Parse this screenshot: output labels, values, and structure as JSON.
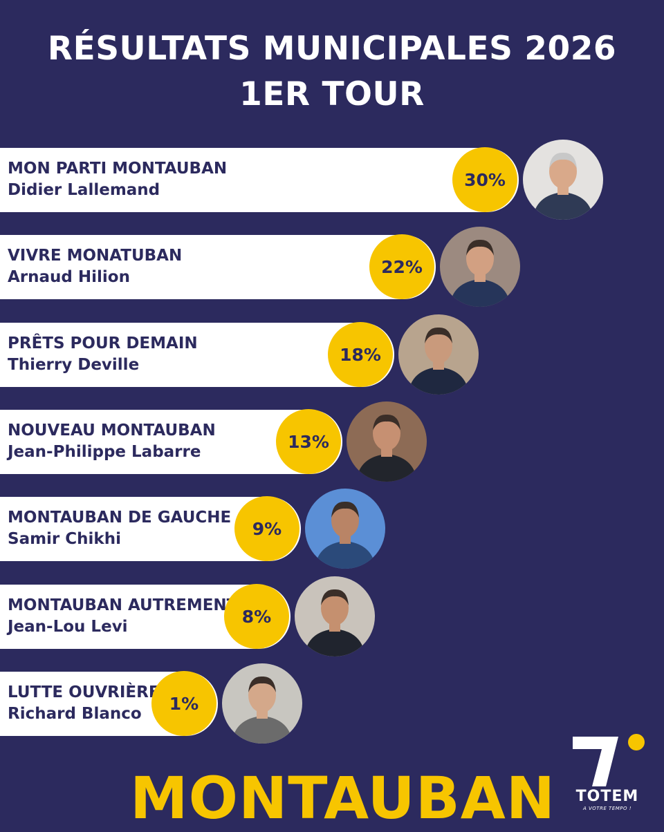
{
  "header": {
    "title_line1": "RÉSULTATS MUNICIPALES 2026",
    "title_line2": "1ER TOUR"
  },
  "chart_data": {
    "type": "bar",
    "title": "RÉSULTATS MUNICIPALES 2026 1ER TOUR",
    "categories": [
      "MON PARTI MONTAUBAN",
      "VIVRE MONATUBAN",
      "PRÊTS POUR DEMAIN",
      "NOUVEAU MONTAUBAN",
      "MONTAUBAN DE GAUCHE",
      "MONTAUBAN AUTREMENT",
      "LUTTE OUVRIÈRE"
    ],
    "candidates": [
      "Didier Lallemand",
      "Arnaud Hilion",
      "Thierry Deville",
      "Jean-Philippe Labarre",
      "Samir Chikhi",
      "Jean-Lou Levi",
      "Richard Blanco"
    ],
    "values": [
      30,
      22,
      18,
      13,
      9,
      8,
      1
    ],
    "labels": [
      "30%",
      "22%",
      "18%",
      "13%",
      "9%",
      "8%",
      "1%"
    ],
    "unit": "%",
    "orientation": "horizontal"
  },
  "footer": {
    "city": "MONTAUBAN",
    "logo_name": "TOTEM",
    "logo_tagline": "A VOTRE TEMPO !"
  },
  "colors": {
    "background": "#2c2a5e",
    "bar": "#ffffff",
    "accent": "#f7c500",
    "text_dark": "#2c2a5e"
  },
  "icons": {
    "photos": [
      "candidate-photo-icon"
    ],
    "logo": "totem-logo-icon"
  }
}
